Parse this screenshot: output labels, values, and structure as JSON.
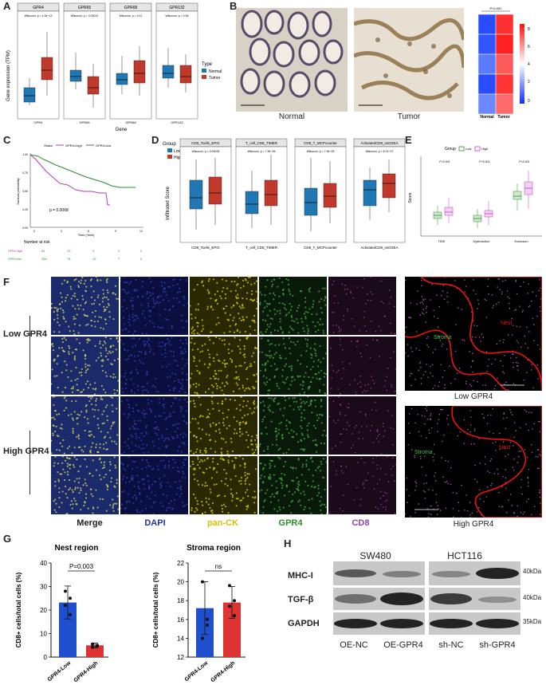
{
  "panel_labels": {
    "A": "A",
    "B": "B",
    "C": "C",
    "D": "D",
    "E": "E",
    "F": "F",
    "G": "G",
    "H": "H"
  },
  "panelA": {
    "facets": [
      {
        "title": "GPR4",
        "stat": "Wilcoxon, p = 4.2e−12",
        "tick": "GPR4"
      },
      {
        "title": "GPR65",
        "stat": "Wilcoxon, p = 0.00012",
        "tick": "GPR65"
      },
      {
        "title": "GPR68",
        "stat": "Wilcoxon, p = 0.12",
        "tick": "GPR68"
      },
      {
        "title": "GPR132",
        "stat": "Wilcoxon, p = 0.38",
        "tick": "GPR132"
      }
    ],
    "ylabel": "Gene expression (TPM)",
    "xlabel": "Gene",
    "legend_title": "Type",
    "legend": [
      {
        "label": "Normal",
        "color": "#1f77b4"
      },
      {
        "label": "Tumor",
        "color": "#c0392b"
      }
    ]
  },
  "panelB": {
    "normal_label": "Normal",
    "tumor_label": "Tumor",
    "heatmap_cols": [
      "Normal",
      "Tumor"
    ],
    "heatmap_p": "P<0.001",
    "scale_ticks": [
      "8",
      "6",
      "4",
      "2",
      "0"
    ]
  },
  "panelC": {
    "legend_title": "Strata",
    "legend": [
      "GPR4=high",
      "GPR4=low"
    ],
    "ylabel": "Survival probability",
    "xlabel": "Time (Year)",
    "pvalue": "p = 0.0068",
    "risk_title": "Number at risk",
    "risk_rows": [
      {
        "name": "GPR4=high",
        "values": [
          "84",
          "13",
          "3",
          "0",
          "0"
        ]
      },
      {
        "name": "GPR4=low",
        "values": [
          "336",
          "76",
          "19",
          "7",
          "0"
        ]
      }
    ],
    "y_ticks": [
      "1.00",
      "0.75",
      "0.50",
      "0.25",
      "0.00"
    ],
    "x_ticks": [
      "0",
      "3",
      "6",
      "9",
      "12"
    ]
  },
  "panelD": {
    "group_title": "Group",
    "legend": [
      {
        "label": "Low",
        "color": "#1f77b4"
      },
      {
        "label": "High",
        "color": "#c0392b"
      }
    ],
    "ylabel": "Infiltrated Score",
    "facets": [
      {
        "title": "CD8_Tcells_EPIC",
        "stat": "Wilcoxon, p = 0.00033",
        "tick": "CD8_Tcells_EPIC"
      },
      {
        "title": "T_cell_CD8_TIMER",
        "stat": "Wilcoxon, p = 7.9e−06",
        "tick": "T_cell_CD8_TIMER"
      },
      {
        "title": "CD8_T_MCPcounter",
        "stat": "Wilcoxon, p = 7.9e−05",
        "tick": "CD8_T_MCPcounter"
      },
      {
        "title": "ActivatedCD8_ssGSEA",
        "stat": "Wilcoxon, p = 8.7e−07",
        "tick": "ActivatedCD8_ssGSEA"
      }
    ]
  },
  "panelE": {
    "group_title": "Group",
    "legend": [
      "Low",
      "High"
    ],
    "ylabel": "Score",
    "categories": [
      "TIDE",
      "Dysfunction",
      "Exclusion"
    ],
    "pvals": [
      "P<0.001",
      "P<0.001",
      "P<0.001"
    ]
  },
  "panelF": {
    "row_groups": [
      "Low GPR4",
      "High GPR4"
    ],
    "channels": [
      {
        "label": "Merge",
        "color": "#111111"
      },
      {
        "label": "DAPI",
        "color": "#2233aa"
      },
      {
        "label": "pan-CK",
        "color": "#d4c400"
      },
      {
        "label": "GPR4",
        "color": "#2e8b2e"
      },
      {
        "label": "CD8",
        "color": "#8e44ad"
      }
    ],
    "map_labels": {
      "nest": "Nest",
      "stroma": "Stroma"
    },
    "map_captions": [
      "Low GPR4",
      "High GPR4"
    ]
  },
  "panelG": {
    "charts": [
      {
        "title": "Nest region",
        "ylabel": "CD8+ cells/total cells (%)",
        "categories": [
          "GPR4-Low",
          "GPR4-High"
        ],
        "values": [
          23.2,
          5.0
        ],
        "err": [
          7,
          1
        ],
        "sig": "P=0.003",
        "ylim": [
          0,
          40
        ],
        "y_ticks": [
          "0",
          "10",
          "20",
          "30",
          "40"
        ]
      },
      {
        "title": "Stroma region",
        "ylabel": "CD8+ cells/total cells (%)",
        "categories": [
          "GPR4-Low",
          "GPR4-High"
        ],
        "values": [
          17.2,
          17.8
        ],
        "err": [
          2.8,
          1.7
        ],
        "sig": "ns",
        "ylim": [
          12,
          22
        ],
        "y_ticks": [
          "12",
          "14",
          "16",
          "18",
          "20",
          "22"
        ]
      }
    ]
  },
  "panelH": {
    "cell_lines": [
      "SW480",
      "HCT116"
    ],
    "rows": [
      {
        "label": "MHC-I",
        "kda": "40kDa"
      },
      {
        "label": "TGF-β",
        "kda": "40kDa"
      },
      {
        "label": "GAPDH",
        "kda": "35kDa"
      }
    ],
    "lanes": [
      "OE-NC",
      "OE-GPR4",
      "sh-NC",
      "sh-GPR4"
    ]
  },
  "chart_data": [
    {
      "type": "bar",
      "title": "Nest region",
      "ylabel": "CD8+ cells/total cells (%)",
      "categories": [
        "GPR4-Low",
        "GPR4-High"
      ],
      "values": [
        23.2,
        5.0
      ],
      "ylim": [
        0,
        40
      ]
    },
    {
      "type": "bar",
      "title": "Stroma region",
      "ylabel": "CD8+ cells/total cells (%)",
      "categories": [
        "GPR4-Low",
        "GPR4-High"
      ],
      "values": [
        17.2,
        17.8
      ],
      "ylim": [
        12,
        22
      ]
    }
  ]
}
